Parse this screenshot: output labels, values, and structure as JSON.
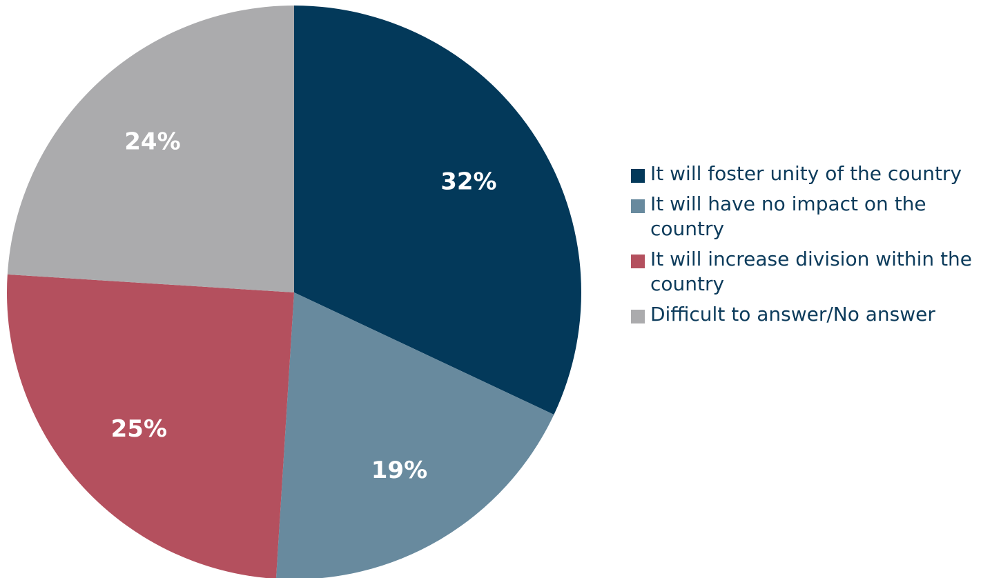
{
  "chart_data": {
    "type": "pie",
    "categories": [
      "It will foster unity of the country",
      "It will have no impact on the country",
      "It will increase division within the country",
      "Difficult to answer/No answer"
    ],
    "values": [
      32,
      19,
      25,
      24
    ],
    "data_labels": [
      "32%",
      "19%",
      "25%",
      "24%"
    ],
    "colors": [
      "#03395a",
      "#688a9e",
      "#b4505e",
      "#ababad"
    ],
    "start_angle_deg": 0,
    "direction": "clockwise",
    "legend_position": "right",
    "title": ""
  }
}
